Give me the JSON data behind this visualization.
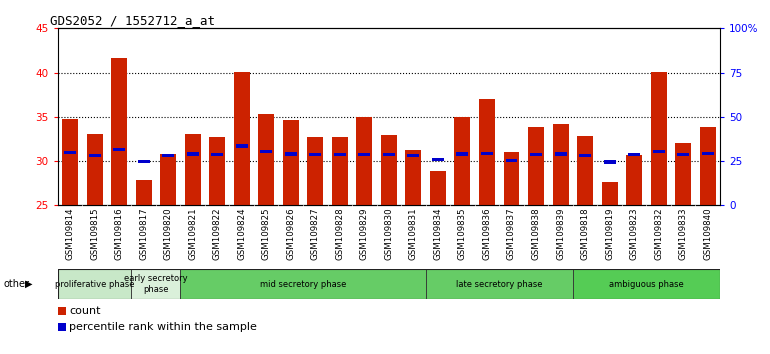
{
  "title": "GDS2052 / 1552712_a_at",
  "samples": [
    "GSM109814",
    "GSM109815",
    "GSM109816",
    "GSM109817",
    "GSM109820",
    "GSM109821",
    "GSM109822",
    "GSM109824",
    "GSM109825",
    "GSM109826",
    "GSM109827",
    "GSM109828",
    "GSM109829",
    "GSM109830",
    "GSM109831",
    "GSM109834",
    "GSM109835",
    "GSM109836",
    "GSM109837",
    "GSM109838",
    "GSM109839",
    "GSM109818",
    "GSM109819",
    "GSM109823",
    "GSM109832",
    "GSM109833",
    "GSM109840"
  ],
  "bar_values": [
    34.8,
    33.1,
    41.7,
    27.9,
    30.8,
    33.1,
    32.7,
    40.1,
    35.3,
    34.6,
    32.7,
    32.7,
    35.0,
    33.0,
    31.3,
    28.9,
    35.0,
    37.0,
    31.0,
    33.9,
    34.2,
    32.8,
    27.6,
    30.7,
    40.1,
    32.0,
    33.8
  ],
  "percentile_values": [
    31.0,
    30.6,
    31.3,
    30.0,
    30.6,
    30.8,
    30.7,
    31.7,
    31.1,
    30.8,
    30.7,
    30.7,
    30.7,
    30.7,
    30.6,
    30.2,
    30.8,
    30.9,
    30.1,
    30.7,
    30.8,
    30.6,
    29.9,
    30.7,
    31.1,
    30.7,
    30.9
  ],
  "y_min": 25,
  "y_max": 45,
  "bar_color": "#CC2200",
  "percentile_color": "#0000CC",
  "phases": [
    {
      "label": "proliferative phase",
      "start": 0,
      "end": 3,
      "color": "#c8e8c8"
    },
    {
      "label": "early secretory\nphase",
      "start": 3,
      "end": 5,
      "color": "#daf0da"
    },
    {
      "label": "mid secretory phase",
      "start": 5,
      "end": 15,
      "color": "#66cc66"
    },
    {
      "label": "late secretory phase",
      "start": 15,
      "end": 21,
      "color": "#66cc66"
    },
    {
      "label": "ambiguous phase",
      "start": 21,
      "end": 27,
      "color": "#55cc55"
    }
  ],
  "tick_bg_color": "#d8d8d8",
  "plot_bg_color": "#ffffff"
}
